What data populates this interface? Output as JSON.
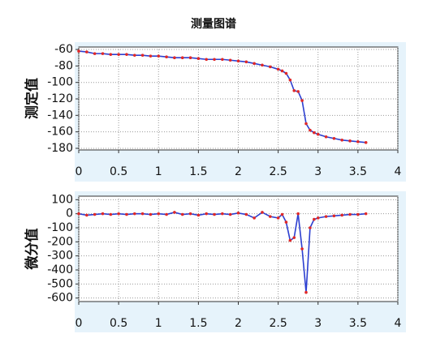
{
  "title": "测量图谱",
  "chart_data": [
    {
      "type": "line",
      "ylabel": "测定值",
      "x": [
        0,
        0.1,
        0.2,
        0.3,
        0.4,
        0.5,
        0.6,
        0.7,
        0.8,
        0.9,
        1.0,
        1.1,
        1.2,
        1.3,
        1.4,
        1.5,
        1.6,
        1.7,
        1.8,
        1.9,
        2.0,
        2.1,
        2.2,
        2.3,
        2.4,
        2.5,
        2.55,
        2.6,
        2.65,
        2.7,
        2.75,
        2.8,
        2.85,
        2.9,
        2.95,
        3.0,
        3.1,
        3.2,
        3.3,
        3.4,
        3.5,
        3.6
      ],
      "series": [
        {
          "color": "#2c3fd0",
          "marker_color": "#e02828",
          "values": [
            -62,
            -63,
            -65,
            -65,
            -66,
            -66,
            -66,
            -67,
            -67,
            -68,
            -68,
            -69,
            -70,
            -70,
            -70,
            -71,
            -72,
            -72,
            -72,
            -73,
            -74,
            -75,
            -77,
            -79,
            -81,
            -84,
            -86,
            -89,
            -97,
            -110,
            -111,
            -122,
            -150,
            -158,
            -161,
            -163,
            -166,
            -168,
            -170,
            -171,
            -172,
            -173
          ]
        }
      ],
      "xlim": [
        0,
        4
      ],
      "xticks": [
        0,
        0.5,
        1,
        1.5,
        2,
        2.5,
        3,
        3.5,
        4
      ],
      "ylim": [
        -182,
        -57
      ],
      "yticks": [
        -60,
        -80,
        -100,
        -120,
        -140,
        -160,
        -180
      ],
      "grid": true
    },
    {
      "type": "line",
      "ylabel": "微分值",
      "x": [
        0,
        0.1,
        0.2,
        0.3,
        0.4,
        0.5,
        0.6,
        0.7,
        0.8,
        0.9,
        1.0,
        1.1,
        1.2,
        1.3,
        1.4,
        1.5,
        1.6,
        1.7,
        1.8,
        1.9,
        2.0,
        2.1,
        2.2,
        2.3,
        2.4,
        2.5,
        2.55,
        2.6,
        2.65,
        2.7,
        2.75,
        2.8,
        2.85,
        2.9,
        2.95,
        3.0,
        3.1,
        3.2,
        3.3,
        3.4,
        3.5,
        3.6
      ],
      "series": [
        {
          "color": "#2c3fd0",
          "marker_color": "#e02828",
          "values": [
            0,
            -10,
            -5,
            0,
            -5,
            0,
            -5,
            0,
            0,
            -5,
            0,
            -5,
            10,
            -5,
            0,
            -10,
            0,
            -5,
            0,
            -5,
            5,
            -5,
            -30,
            10,
            -20,
            -30,
            -5,
            -60,
            -190,
            -170,
            0,
            -250,
            -560,
            -100,
            -40,
            -30,
            -20,
            -15,
            -10,
            -5,
            -5,
            0
          ]
        }
      ],
      "xlim": [
        0,
        4
      ],
      "xticks": [
        0,
        0.5,
        1,
        1.5,
        2,
        2.5,
        3,
        3.5,
        4
      ],
      "ylim": [
        -625,
        125
      ],
      "yticks": [
        100,
        0,
        -100,
        -200,
        -300,
        -400,
        -500,
        -600
      ],
      "grid": true
    }
  ]
}
